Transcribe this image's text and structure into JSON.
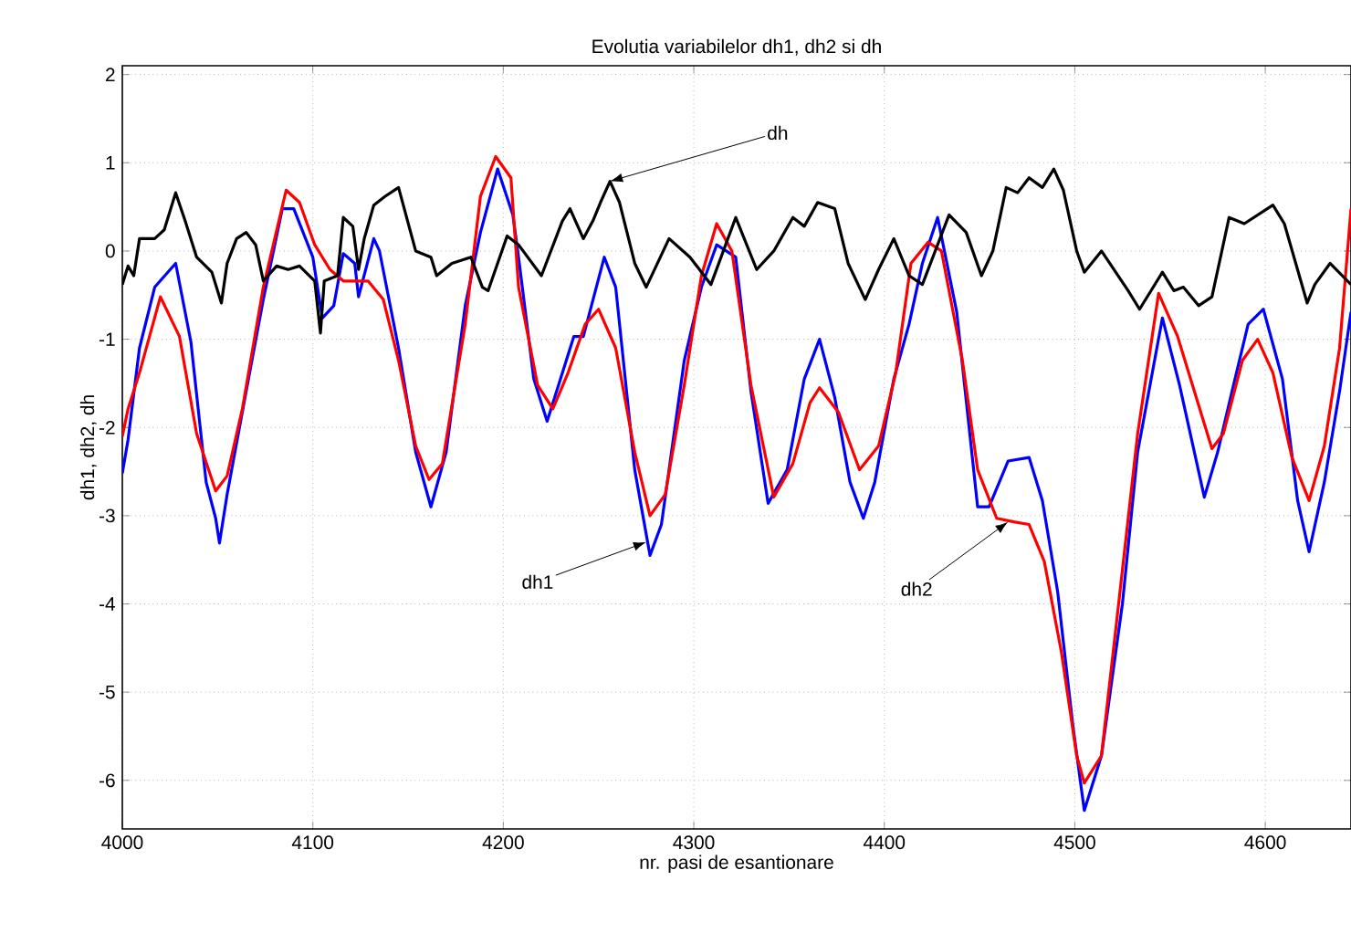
{
  "chart_data": {
    "type": "line",
    "title": "Evolutia variabilelor dh1, dh2 si dh",
    "xlabel": "nr. pasi de esantionare",
    "ylabel": "dh1, dh2, dh",
    "xlim": [
      4000,
      4645
    ],
    "ylim": [
      -6.55,
      2.1
    ],
    "xticks": [
      4000,
      4100,
      4200,
      4300,
      4400,
      4500,
      4600
    ],
    "yticks": [
      -6,
      -5,
      -4,
      -3,
      -2,
      -1,
      0,
      1,
      2
    ],
    "grid": true,
    "line_style": "solid",
    "marker": "none",
    "series": [
      {
        "color": "#0000ff",
        "x": [
          4000,
          4003,
          4009,
          4017,
          4028,
          4036,
          4044,
          4049,
          4051,
          4055,
          4065,
          4074,
          4084,
          4090,
          4100,
          4105,
          4111,
          4116,
          4122,
          4124,
          4132,
          4135,
          4145,
          4154,
          4162,
          4170,
          4180,
          4188,
          4197,
          4205,
          4208,
          4216,
          4223,
          4229,
          4237,
          4242,
          4253,
          4259,
          4269,
          4277,
          4283,
          4295,
          4304,
          4312,
          4322,
          4330,
          4339,
          4349,
          4358,
          4366,
          4374,
          4382,
          4389,
          4395,
          4405,
          4413,
          4420,
          4428,
          4438,
          4449,
          4455,
          4465,
          4476,
          4483,
          4491,
          4499,
          4505,
          4514,
          4525,
          4533,
          4546,
          4555,
          4568,
          4575,
          4583,
          4591,
          4599,
          4609,
          4617,
          4623,
          4631,
          4639,
          4645
        ],
        "values": [
          -2.52,
          -2.14,
          -1.1,
          -0.41,
          -0.14,
          -1.03,
          -2.62,
          -3.03,
          -3.31,
          -2.76,
          -1.59,
          -0.55,
          0.48,
          0.48,
          -0.07,
          -0.76,
          -0.62,
          -0.03,
          -0.14,
          -0.52,
          0.14,
          0.0,
          -1.1,
          -2.28,
          -2.9,
          -2.28,
          -0.62,
          0.21,
          0.93,
          0.41,
          -0.07,
          -1.45,
          -1.93,
          -1.52,
          -0.97,
          -0.97,
          -0.07,
          -0.41,
          -2.48,
          -3.45,
          -3.1,
          -1.24,
          -0.41,
          0.07,
          -0.07,
          -1.59,
          -2.86,
          -2.48,
          -1.45,
          -1.0,
          -1.66,
          -2.62,
          -3.03,
          -2.62,
          -1.45,
          -0.83,
          -0.14,
          0.38,
          -0.69,
          -2.9,
          -2.9,
          -2.38,
          -2.34,
          -2.83,
          -3.86,
          -5.38,
          -6.34,
          -5.72,
          -4.0,
          -2.28,
          -0.76,
          -1.52,
          -2.79,
          -2.28,
          -1.55,
          -0.83,
          -0.66,
          -1.45,
          -2.83,
          -3.41,
          -2.62,
          -1.59,
          -0.69
        ]
      },
      {
        "color": "#ff0000",
        "x": [
          4000,
          4003,
          4009,
          4020,
          4030,
          4039,
          4049,
          4055,
          4063,
          4074,
          4086,
          4093,
          4101,
          4109,
          4116,
          4129,
          4137,
          4145,
          4154,
          4161,
          4168,
          4180,
          4188,
          4196,
          4204,
          4208,
          4218,
          4226,
          4234,
          4243,
          4250,
          4259,
          4269,
          4277,
          4285,
          4295,
          4304,
          4312,
          4320,
          4330,
          4342,
          4352,
          4361,
          4366,
          4376,
          4387,
          4397,
          4406,
          4414,
          4423,
          4430,
          4441,
          4449,
          4459,
          4468,
          4476,
          4484,
          4493,
          4501,
          4505,
          4514,
          4523,
          4533,
          4544,
          4554,
          4572,
          4578,
          4588,
          4596,
          4604,
          4614,
          4623,
          4631,
          4639,
          4645
        ],
        "values": [
          -2.1,
          -1.79,
          -1.38,
          -0.52,
          -0.97,
          -2.07,
          -2.72,
          -2.55,
          -1.79,
          -0.41,
          0.69,
          0.55,
          0.07,
          -0.21,
          -0.34,
          -0.34,
          -0.55,
          -1.24,
          -2.21,
          -2.59,
          -2.41,
          -0.83,
          0.62,
          1.07,
          0.83,
          -0.41,
          -1.52,
          -1.79,
          -1.38,
          -0.83,
          -0.66,
          -1.1,
          -2.28,
          -3.0,
          -2.76,
          -1.52,
          -0.28,
          0.31,
          0.0,
          -1.52,
          -2.79,
          -2.41,
          -1.72,
          -1.55,
          -1.83,
          -2.48,
          -2.21,
          -1.38,
          -0.14,
          0.1,
          0.0,
          -1.24,
          -2.48,
          -3.03,
          -3.07,
          -3.1,
          -3.52,
          -4.55,
          -5.72,
          -6.03,
          -5.72,
          -4.0,
          -2.07,
          -0.48,
          -0.97,
          -2.24,
          -2.07,
          -1.24,
          -1.0,
          -1.38,
          -2.34,
          -2.83,
          -2.21,
          -1.1,
          0.48
        ]
      },
      {
        "color": "#000000",
        "x": [
          4000,
          4003,
          4006,
          4009,
          4017,
          4022,
          4028,
          4033,
          4039,
          4047,
          4052,
          4055,
          4060,
          4065,
          4070,
          4074,
          4081,
          4087,
          4093,
          4101,
          4104,
          4106,
          4113,
          4116,
          4121,
          4124,
          4127,
          4132,
          4138,
          4145,
          4148,
          4154,
          4162,
          4165,
          4173,
          4183,
          4189,
          4192,
          4202,
          4208,
          4220,
          4231,
          4235,
          4242,
          4247,
          4251,
          4256,
          4261,
          4269,
          4275,
          4287,
          4298,
          4309,
          4322,
          4333,
          4342,
          4352,
          4358,
          4365,
          4374,
          4381,
          4390,
          4397,
          4405,
          4413,
          4420,
          4434,
          4443,
          4451,
          4457,
          4464,
          4470,
          4476,
          4483,
          4489,
          4494,
          4501,
          4505,
          4514,
          4528,
          4534,
          4546,
          4552,
          4557,
          4565,
          4572,
          4581,
          4589,
          4604,
          4610,
          4622,
          4626,
          4634,
          4645
        ],
        "values": [
          -0.38,
          -0.17,
          -0.28,
          0.14,
          0.14,
          0.24,
          0.66,
          0.34,
          -0.07,
          -0.24,
          -0.59,
          -0.14,
          0.14,
          0.21,
          0.07,
          -0.34,
          -0.17,
          -0.21,
          -0.17,
          -0.34,
          -0.93,
          -0.34,
          -0.28,
          0.38,
          0.28,
          -0.21,
          0.14,
          0.52,
          0.62,
          0.72,
          0.48,
          0.0,
          -0.07,
          -0.28,
          -0.14,
          -0.07,
          -0.41,
          -0.45,
          0.17,
          0.07,
          -0.28,
          0.34,
          0.48,
          0.14,
          0.34,
          0.55,
          0.79,
          0.55,
          -0.14,
          -0.41,
          0.14,
          -0.07,
          -0.38,
          0.38,
          -0.21,
          0.0,
          0.38,
          0.28,
          0.55,
          0.48,
          -0.14,
          -0.55,
          -0.21,
          0.14,
          -0.28,
          -0.38,
          0.41,
          0.21,
          -0.28,
          0.0,
          0.72,
          0.66,
          0.83,
          0.72,
          0.93,
          0.69,
          0.0,
          -0.24,
          0.0,
          -0.45,
          -0.66,
          -0.24,
          -0.45,
          -0.41,
          -0.62,
          -0.52,
          0.38,
          0.31,
          0.52,
          0.31,
          -0.59,
          -0.38,
          -0.14,
          -0.38
        ]
      }
    ],
    "annotations": [
      {
        "text": "dh",
        "x": 4256,
        "y": 0.79
      },
      {
        "text": "dh1",
        "x": 4275,
        "y": -3.3
      },
      {
        "text": "dh2",
        "x": 4465,
        "y": -3.07
      }
    ]
  }
}
